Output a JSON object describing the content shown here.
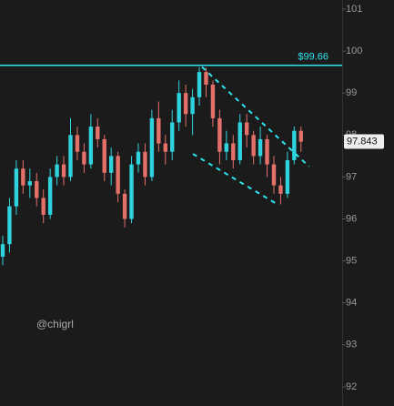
{
  "chart_data": {
    "type": "candlestick",
    "open": [
      95.1,
      95.4,
      96.3,
      97.2,
      96.8,
      96.9,
      96.5,
      96.1,
      97.0,
      97.3,
      97.0,
      98.0,
      97.6,
      97.3,
      98.2,
      97.9,
      97.1,
      97.5,
      96.6,
      96.0,
      97.3,
      97.6,
      97.0,
      98.4,
      97.8,
      97.6,
      98.3,
      99.0,
      98.5,
      98.9,
      99.5,
      99.2,
      98.4,
      97.6,
      97.8,
      97.4,
      98.3,
      98.0,
      97.5,
      97.9,
      97.3,
      96.8,
      96.6,
      97.4,
      98.1
    ],
    "high": [
      95.6,
      96.5,
      97.4,
      97.4,
      97.2,
      97.1,
      96.7,
      97.2,
      97.5,
      97.5,
      98.4,
      98.2,
      97.8,
      98.5,
      98.4,
      98.0,
      97.7,
      97.6,
      96.7,
      97.5,
      97.8,
      97.8,
      98.6,
      98.8,
      98.0,
      98.6,
      99.3,
      99.2,
      99.1,
      99.62,
      99.6,
      99.3,
      98.6,
      98.1,
      98.0,
      98.5,
      98.5,
      98.1,
      98.2,
      98.0,
      97.5,
      97.0,
      97.6,
      98.2,
      98.2
    ],
    "low": [
      94.9,
      95.2,
      96.1,
      96.6,
      96.5,
      96.3,
      95.9,
      96.0,
      96.8,
      96.8,
      96.9,
      97.4,
      97.1,
      97.2,
      97.7,
      96.9,
      96.8,
      96.4,
      95.8,
      95.9,
      97.1,
      96.8,
      96.9,
      97.6,
      97.3,
      97.4,
      98.1,
      98.2,
      98.0,
      98.7,
      98.9,
      98.2,
      97.3,
      97.4,
      97.2,
      97.3,
      97.7,
      97.3,
      97.3,
      97.0,
      96.6,
      96.35,
      96.5,
      97.3,
      97.6
    ],
    "close": [
      95.4,
      96.3,
      97.2,
      96.8,
      96.9,
      96.5,
      96.1,
      97.0,
      97.3,
      97.0,
      98.0,
      97.6,
      97.3,
      98.2,
      97.9,
      97.1,
      97.5,
      96.6,
      96.0,
      97.3,
      97.6,
      97.0,
      98.4,
      97.8,
      97.6,
      98.3,
      99.0,
      98.5,
      98.9,
      99.5,
      99.2,
      98.4,
      97.6,
      97.8,
      97.4,
      98.3,
      98.0,
      97.5,
      97.9,
      97.3,
      96.8,
      96.6,
      97.4,
      98.1,
      97.84
    ],
    "up_color": "#2fd3de",
    "down_color": "#e4706a",
    "xlim": [
      -0.403,
      50.07
    ],
    "ylim": [
      91.543,
      101.217
    ],
    "yticks": [
      92,
      93,
      94,
      95,
      96,
      97,
      98,
      99,
      100,
      101
    ],
    "reference_line": {
      "value": 99.66,
      "label": "$99.66",
      "color": "#2ee4ee"
    },
    "current_price": 97.843,
    "trendlines": [
      {
        "x": [
          29.4,
          45.2
        ],
        "y": [
          99.62,
          97.25
        ]
      },
      {
        "x": [
          28.05,
          40.5
        ],
        "y": [
          97.55,
          96.35
        ]
      }
    ],
    "watermark": "@chigrl"
  }
}
